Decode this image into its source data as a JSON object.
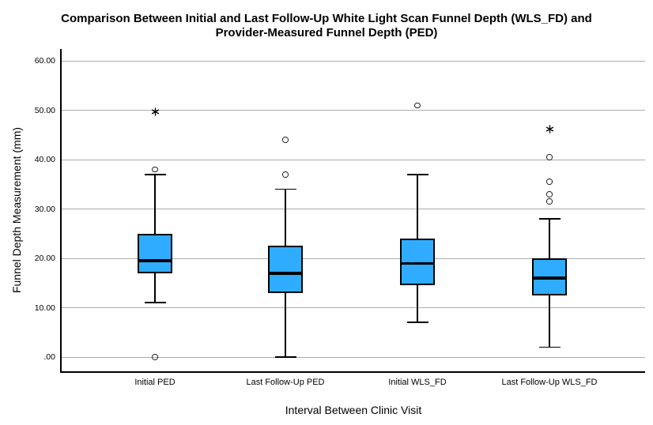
{
  "window": {
    "background": "#ffffff"
  },
  "chart_data": {
    "type": "boxplot",
    "title": "Comparison Between Initial and Last Follow-Up White Light Scan Funnel Depth (WLS_FD) and Provider-Measured Funnel Depth (PED)",
    "title_lines": [
      "Comparison Between Initial and Last Follow-Up White Light Scan Funnel Depth (WLS_FD) and",
      "Provider-Measured Funnel Depth (PED)"
    ],
    "xlabel": "Interval Between Clinic Visit",
    "ylabel": "Funnel Depth Measurement (mm)",
    "ylim": [
      0,
      60
    ],
    "ytick_values": [
      0,
      10,
      20,
      30,
      40,
      50,
      60
    ],
    "ytick_labels": [
      ".00",
      "10.00",
      "20.00",
      "30.00",
      "40.00",
      "50.00",
      "60.00"
    ],
    "grid": "horizontal",
    "legend": "none",
    "colors": {
      "box_fill": "#2FACFF",
      "box_border": "#000000",
      "median": "#000000",
      "gridline": "#ACACAC",
      "outlier_stroke": "#1F1F1F",
      "extreme_marker": "#000000"
    },
    "categories": [
      "Initial PED",
      "Last Follow-Up PED",
      "Initial WLS_FD",
      "Last Follow-Up WLS_FD"
    ],
    "series": [
      {
        "category": "Initial PED",
        "whisker_low": 11,
        "q1": 17,
        "median": 19.5,
        "q3": 25,
        "whisker_high": 37,
        "outliers": [
          0,
          38
        ],
        "extremes": [
          50
        ]
      },
      {
        "category": "Last Follow-Up PED",
        "whisker_low": 0,
        "q1": 13,
        "median": 17,
        "q3": 22.5,
        "whisker_high": 34,
        "outliers": [
          37,
          44
        ],
        "extremes": []
      },
      {
        "category": "Initial WLS_FD",
        "whisker_low": 7,
        "q1": 14.5,
        "median": 19,
        "q3": 24,
        "whisker_high": 37,
        "outliers": [
          51
        ],
        "extremes": []
      },
      {
        "category": "Last Follow-Up WLS_FD",
        "whisker_low": 2,
        "q1": 12.5,
        "median": 16,
        "q3": 20,
        "whisker_high": 28,
        "outliers": [
          31.5,
          33,
          35.5,
          40.5
        ],
        "extremes": [
          46.5
        ]
      }
    ]
  }
}
